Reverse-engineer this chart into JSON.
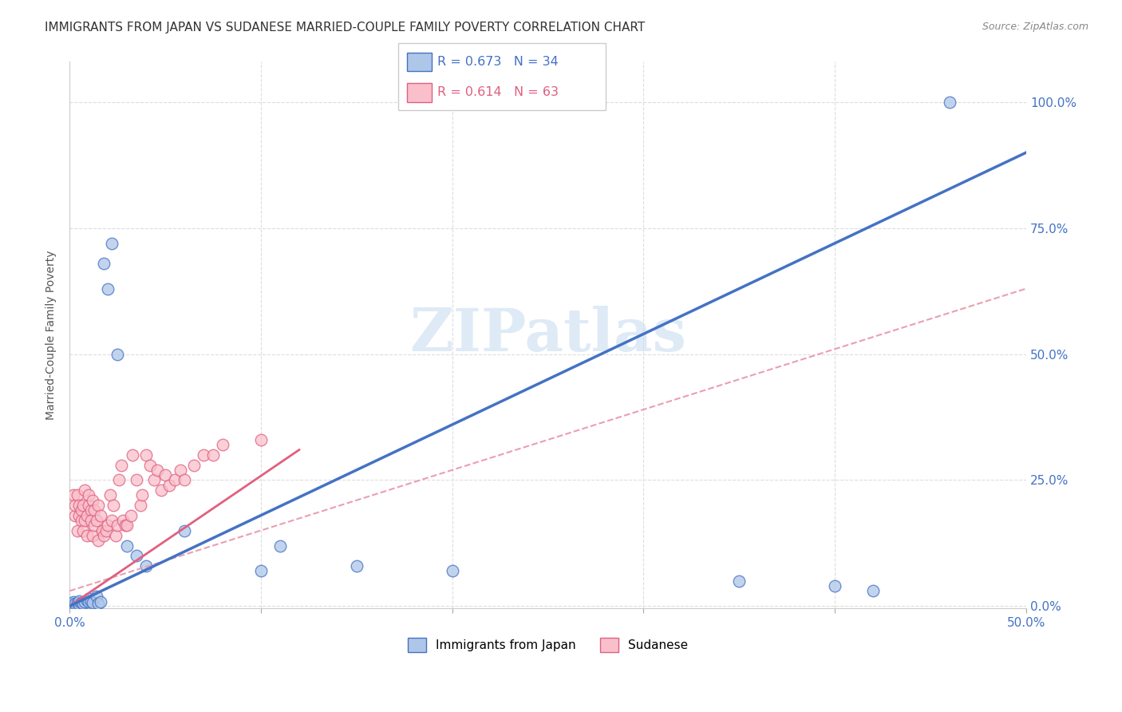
{
  "title": "IMMIGRANTS FROM JAPAN VS SUDANESE MARRIED-COUPLE FAMILY POVERTY CORRELATION CHART",
  "source": "Source: ZipAtlas.com",
  "ylabel": "Married-Couple Family Poverty",
  "xlim": [
    0.0,
    0.5
  ],
  "ylim": [
    -0.005,
    1.08
  ],
  "xticks": [
    0.0,
    0.1,
    0.2,
    0.3,
    0.4,
    0.5
  ],
  "xticklabels_bottom": [
    "0.0%",
    "",
    "",
    "",
    "",
    "50.0%"
  ],
  "yticks": [
    0.0,
    0.25,
    0.5,
    0.75,
    1.0
  ],
  "yticklabels": [
    "0.0%",
    "25.0%",
    "50.0%",
    "75.0%",
    "100.0%"
  ],
  "watermark": "ZIPatlas",
  "blue_R": "0.673",
  "blue_N": "34",
  "pink_R": "0.614",
  "pink_N": "63",
  "blue_fill_color": "#aec6e8",
  "pink_fill_color": "#f9c0cb",
  "blue_edge_color": "#4472c4",
  "pink_edge_color": "#e06080",
  "blue_line_color": "#4472c4",
  "pink_line_color": "#e06080",
  "pink_dashed_color": "#e8a0b0",
  "blue_scatter": [
    [
      0.001,
      0.005
    ],
    [
      0.002,
      0.003
    ],
    [
      0.002,
      0.008
    ],
    [
      0.003,
      0.005
    ],
    [
      0.004,
      0.006
    ],
    [
      0.005,
      0.004
    ],
    [
      0.005,
      0.01
    ],
    [
      0.006,
      0.007
    ],
    [
      0.007,
      0.005
    ],
    [
      0.008,
      0.008
    ],
    [
      0.009,
      0.012
    ],
    [
      0.01,
      0.015
    ],
    [
      0.01,
      0.008
    ],
    [
      0.011,
      0.01
    ],
    [
      0.012,
      0.007
    ],
    [
      0.014,
      0.02
    ],
    [
      0.015,
      0.005
    ],
    [
      0.016,
      0.008
    ],
    [
      0.018,
      0.68
    ],
    [
      0.02,
      0.63
    ],
    [
      0.022,
      0.72
    ],
    [
      0.025,
      0.5
    ],
    [
      0.03,
      0.12
    ],
    [
      0.035,
      0.1
    ],
    [
      0.04,
      0.08
    ],
    [
      0.06,
      0.15
    ],
    [
      0.1,
      0.07
    ],
    [
      0.11,
      0.12
    ],
    [
      0.15,
      0.08
    ],
    [
      0.2,
      0.07
    ],
    [
      0.35,
      0.05
    ],
    [
      0.4,
      0.04
    ],
    [
      0.42,
      0.03
    ],
    [
      0.46,
      1.0
    ]
  ],
  "pink_scatter": [
    [
      0.001,
      0.005
    ],
    [
      0.002,
      0.003
    ],
    [
      0.002,
      0.22
    ],
    [
      0.003,
      0.18
    ],
    [
      0.003,
      0.2
    ],
    [
      0.004,
      0.15
    ],
    [
      0.004,
      0.22
    ],
    [
      0.005,
      0.18
    ],
    [
      0.005,
      0.2
    ],
    [
      0.006,
      0.17
    ],
    [
      0.006,
      0.19
    ],
    [
      0.007,
      0.2
    ],
    [
      0.007,
      0.15
    ],
    [
      0.008,
      0.17
    ],
    [
      0.008,
      0.23
    ],
    [
      0.009,
      0.18
    ],
    [
      0.009,
      0.14
    ],
    [
      0.01,
      0.2
    ],
    [
      0.01,
      0.22
    ],
    [
      0.011,
      0.19
    ],
    [
      0.011,
      0.17
    ],
    [
      0.012,
      0.21
    ],
    [
      0.012,
      0.14
    ],
    [
      0.013,
      0.19
    ],
    [
      0.013,
      0.16
    ],
    [
      0.014,
      0.17
    ],
    [
      0.015,
      0.2
    ],
    [
      0.015,
      0.13
    ],
    [
      0.016,
      0.18
    ],
    [
      0.017,
      0.15
    ],
    [
      0.018,
      0.14
    ],
    [
      0.019,
      0.15
    ],
    [
      0.02,
      0.16
    ],
    [
      0.021,
      0.22
    ],
    [
      0.022,
      0.17
    ],
    [
      0.023,
      0.2
    ],
    [
      0.024,
      0.14
    ],
    [
      0.025,
      0.16
    ],
    [
      0.026,
      0.25
    ],
    [
      0.027,
      0.28
    ],
    [
      0.028,
      0.17
    ],
    [
      0.029,
      0.16
    ],
    [
      0.03,
      0.16
    ],
    [
      0.032,
      0.18
    ],
    [
      0.033,
      0.3
    ],
    [
      0.035,
      0.25
    ],
    [
      0.037,
      0.2
    ],
    [
      0.038,
      0.22
    ],
    [
      0.04,
      0.3
    ],
    [
      0.042,
      0.28
    ],
    [
      0.044,
      0.25
    ],
    [
      0.046,
      0.27
    ],
    [
      0.048,
      0.23
    ],
    [
      0.05,
      0.26
    ],
    [
      0.052,
      0.24
    ],
    [
      0.055,
      0.25
    ],
    [
      0.058,
      0.27
    ],
    [
      0.06,
      0.25
    ],
    [
      0.065,
      0.28
    ],
    [
      0.07,
      0.3
    ],
    [
      0.075,
      0.3
    ],
    [
      0.08,
      0.32
    ],
    [
      0.1,
      0.33
    ]
  ],
  "blue_trendline_x": [
    0.0,
    0.5
  ],
  "blue_trendline_y": [
    0.0,
    0.9
  ],
  "pink_solid_trendline_x": [
    0.0,
    0.12
  ],
  "pink_solid_trendline_y": [
    0.0,
    0.31
  ],
  "pink_dashed_trendline_x": [
    0.0,
    0.5
  ],
  "pink_dashed_trendline_y": [
    0.03,
    0.63
  ],
  "grid_color": "#dddddd",
  "bg_color": "#ffffff",
  "title_fontsize": 11,
  "tick_color_right": "#4472c4",
  "tick_color_bottom": "#4472c4",
  "legend_box_color_blue": "#aec6e8",
  "legend_box_color_pink": "#f9c0cb",
  "legend_text_blue": "R = 0.673   N = 34",
  "legend_text_pink": "R = 0.614   N = 63",
  "legend_label_blue": "Immigrants from Japan",
  "legend_label_pink": "Sudanese"
}
